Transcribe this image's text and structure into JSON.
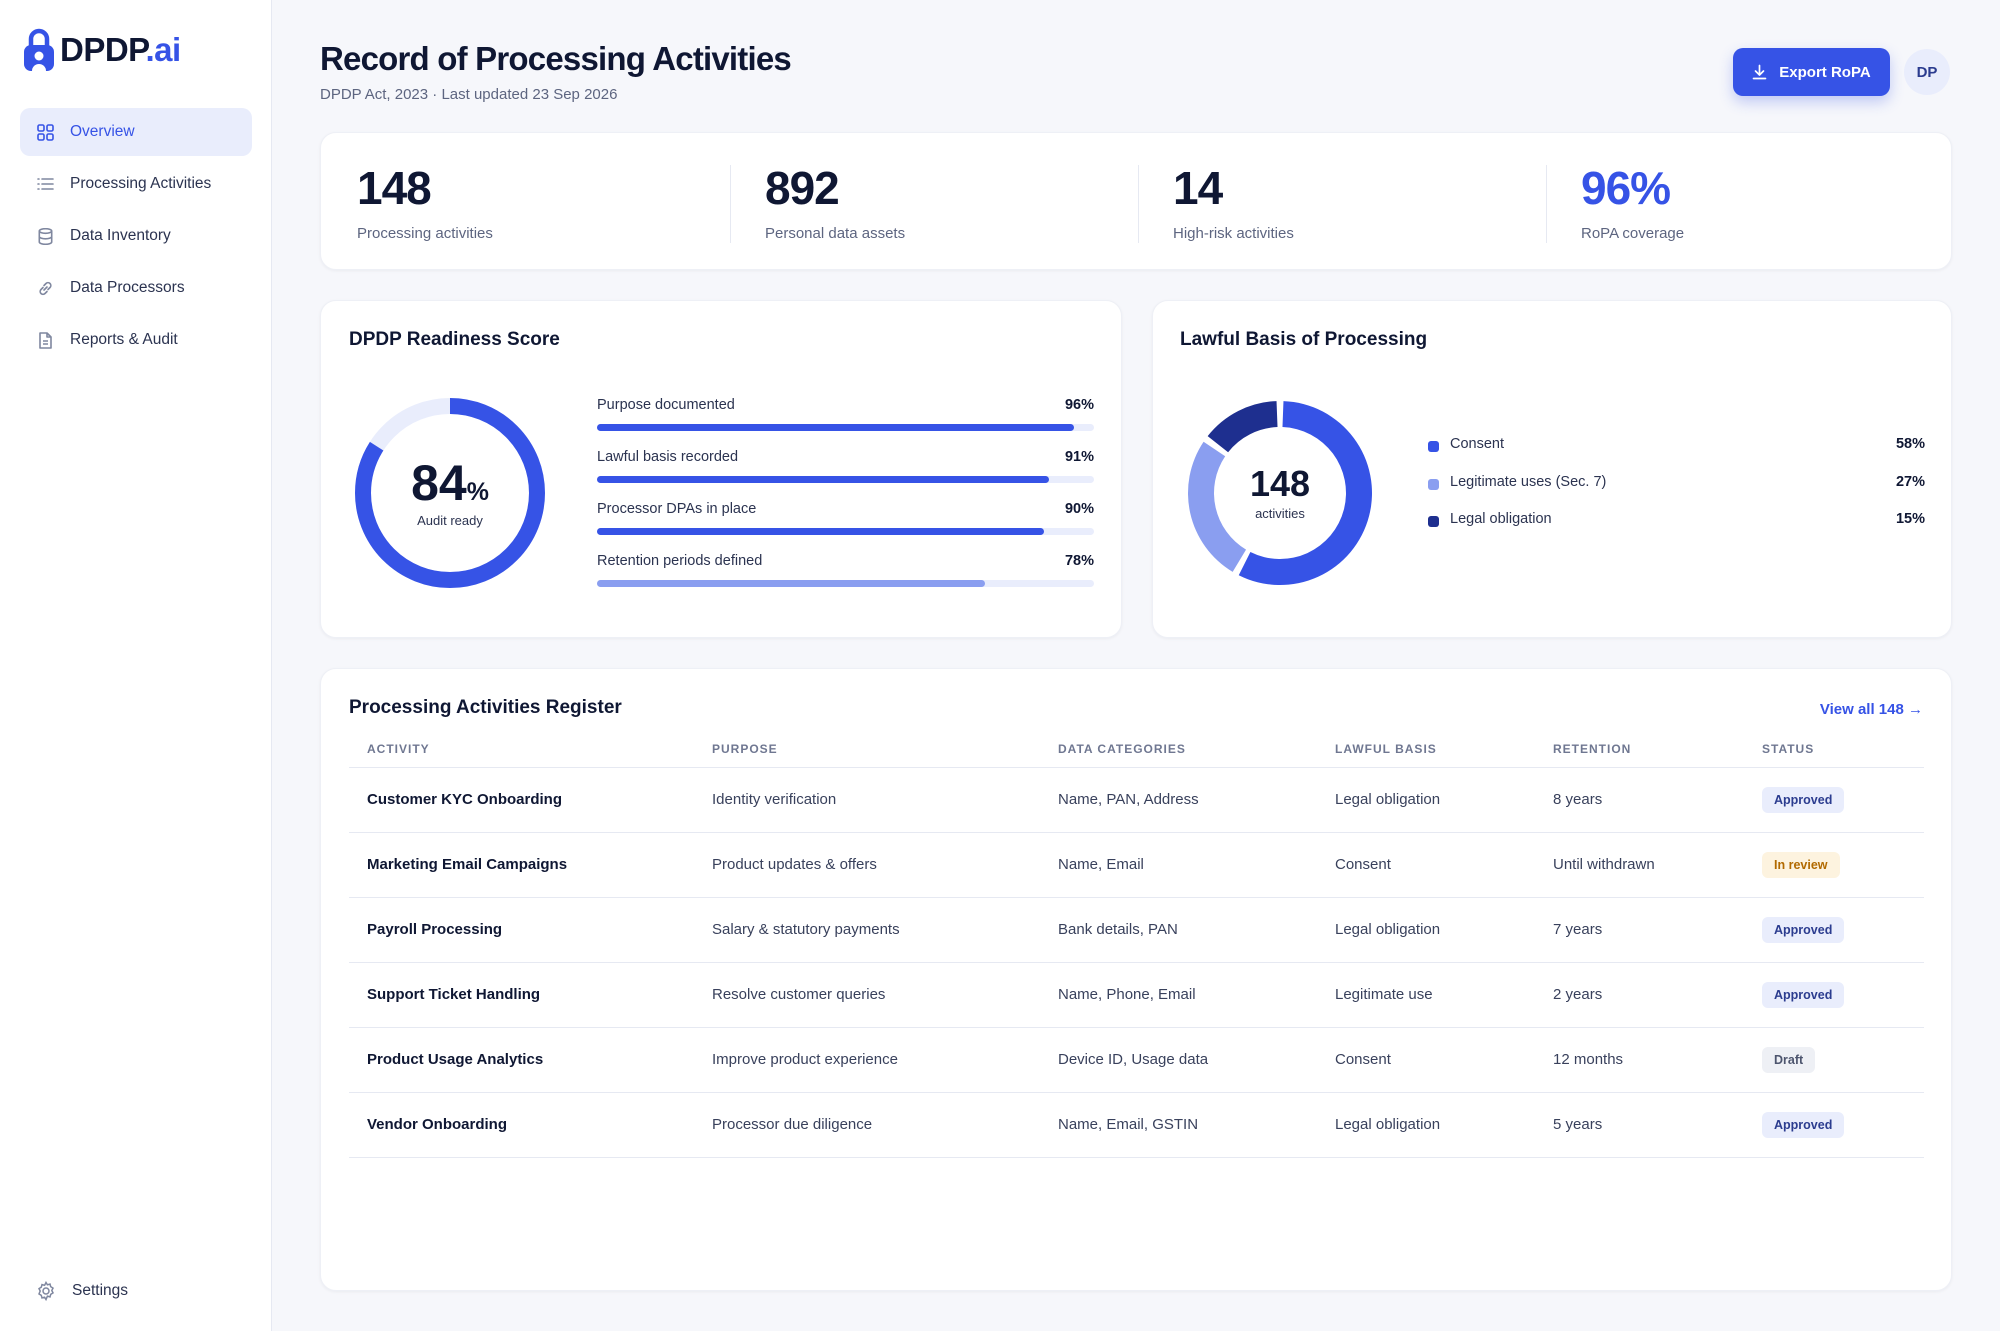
{
  "app": {
    "brand_main": "DPDP",
    "brand_suffix": ".ai"
  },
  "sidebar": {
    "items": [
      {
        "label": "Overview",
        "icon": "grid-icon",
        "active": true
      },
      {
        "label": "Processing Activities",
        "icon": "list-icon"
      },
      {
        "label": "Data Inventory",
        "icon": "database-icon"
      },
      {
        "label": "Data Processors",
        "icon": "link-icon"
      },
      {
        "label": "Reports & Audit",
        "icon": "document-icon"
      }
    ],
    "settings_label": "Settings"
  },
  "header": {
    "title": "Record of Processing Activities",
    "subtitle": "DPDP Act, 2023 · Last updated 23 Sep 2026",
    "export_label": "Export RoPA",
    "avatar_initials": "DP"
  },
  "stats": [
    {
      "value": "148",
      "label": "Processing activities"
    },
    {
      "value": "892",
      "label": "Personal data assets"
    },
    {
      "value": "14",
      "label": "High-risk activities"
    },
    {
      "value": "96%",
      "label": "RoPA coverage"
    }
  ],
  "readiness": {
    "title": "DPDP Readiness Score",
    "score": "84",
    "score_unit": "%",
    "score_caption": "Audit ready",
    "score_fraction": 0.84,
    "bars": [
      {
        "label": "Purpose documented",
        "value": "96%",
        "fraction": 0.96
      },
      {
        "label": "Lawful basis recorded",
        "value": "91%",
        "fraction": 0.91
      },
      {
        "label": "Processor DPAs in place",
        "value": "90%",
        "fraction": 0.9
      },
      {
        "label": "Retention periods defined",
        "value": "78%",
        "fraction": 0.78
      }
    ]
  },
  "lawful_basis": {
    "title": "Lawful Basis of Processing",
    "center_value": "148",
    "center_caption": "activities",
    "items": [
      {
        "label": "Consent",
        "value": "58%",
        "fraction": 0.58,
        "color": "#3653e6"
      },
      {
        "label": "Legitimate uses (Sec. 7)",
        "value": "27%",
        "fraction": 0.27,
        "color": "#8a9ef0"
      },
      {
        "label": "Legal obligation",
        "value": "15%",
        "fraction": 0.15,
        "color": "#1e2f8f"
      }
    ]
  },
  "register": {
    "title": "Processing Activities Register",
    "view_all": "View all 148 →",
    "columns": [
      "ACTIVITY",
      "PURPOSE",
      "DATA CATEGORIES",
      "LAWFUL BASIS",
      "RETENTION",
      "STATUS"
    ],
    "rows": [
      {
        "activity": "Customer KYC Onboarding",
        "purpose": "Identity verification",
        "categories": "Name, PAN, Address",
        "basis": "Legal obligation",
        "retention": "8 years",
        "status": "Approved",
        "status_kind": "approved"
      },
      {
        "activity": "Marketing Email Campaigns",
        "purpose": "Product updates & offers",
        "categories": "Name, Email",
        "basis": "Consent",
        "retention": "Until withdrawn",
        "status": "In review",
        "status_kind": "review"
      },
      {
        "activity": "Payroll Processing",
        "purpose": "Salary & statutory payments",
        "categories": "Bank details, PAN",
        "basis": "Legal obligation",
        "retention": "7 years",
        "status": "Approved",
        "status_kind": "approved"
      },
      {
        "activity": "Support Ticket Handling",
        "purpose": "Resolve customer queries",
        "categories": "Name, Phone, Email",
        "basis": "Legitimate use",
        "retention": "2 years",
        "status": "Approved",
        "status_kind": "approved"
      },
      {
        "activity": "Product Usage Analytics",
        "purpose": "Improve product experience",
        "categories": "Device ID, Usage data",
        "basis": "Consent",
        "retention": "12 months",
        "status": "Draft",
        "status_kind": "draft"
      },
      {
        "activity": "Vendor Onboarding",
        "purpose": "Processor due diligence",
        "categories": "Name, Email, GSTIN",
        "basis": "Legal obligation",
        "retention": "5 years",
        "status": "Approved",
        "status_kind": "approved"
      }
    ]
  },
  "colors": {
    "accent": "#3653e6",
    "accent_light": "#8a9ef0",
    "accent_dark": "#1e2f8f",
    "track": "#e9edfc"
  }
}
